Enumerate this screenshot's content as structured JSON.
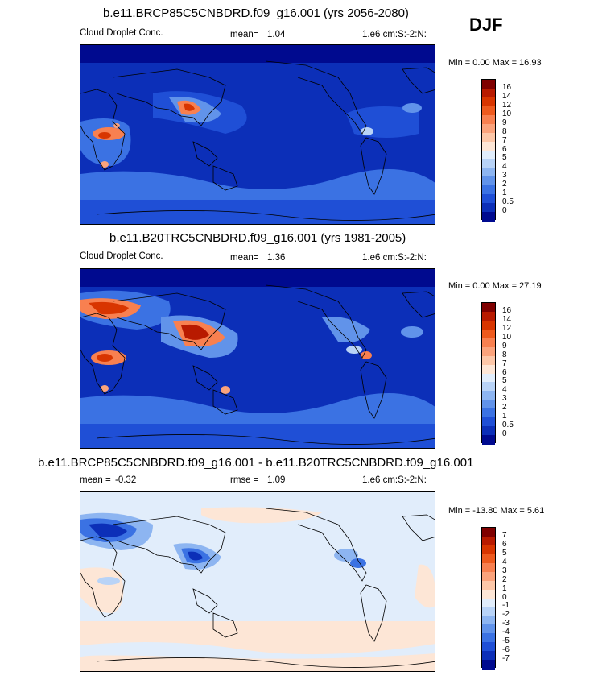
{
  "season": "DJF",
  "panels": [
    {
      "title": "b.e11.BRCP85C5CNBDRD.f09_g16.001 (yrs 2056-2080)",
      "variable": "Cloud Droplet Conc.",
      "stat_label": "mean=",
      "stat_value": "1.04",
      "units": "1.e6 cm:S:-2:N:",
      "minmax": "Min =   0.00 Max =  16.93",
      "colorbar_labels": [
        "16",
        "14",
        "12",
        "10",
        "9",
        "8",
        "7",
        "6",
        "5",
        "4",
        "3",
        "2",
        "1",
        "0.5",
        "0"
      ],
      "colors": [
        "#7f0000",
        "#b81a00",
        "#d83500",
        "#ee5a1e",
        "#f88050",
        "#fba37c",
        "#fdc7a8",
        "#fde6d6",
        "#e1edfb",
        "#b8d3f7",
        "#8db5f1",
        "#6193ea",
        "#3b72e3",
        "#1f4fd6",
        "#0c2fb8",
        "#000a8f"
      ]
    },
    {
      "title": "b.e11.B20TRC5CNBDRD.f09_g16.001 (yrs 1981-2005)",
      "variable": "Cloud Droplet Conc.",
      "stat_label": "mean=",
      "stat_value": "1.36",
      "units": "1.e6 cm:S:-2:N:",
      "minmax": "Min =   0.00 Max =  27.19",
      "colorbar_labels": [
        "16",
        "14",
        "12",
        "10",
        "9",
        "8",
        "7",
        "6",
        "5",
        "4",
        "3",
        "2",
        "1",
        "0.5",
        "0"
      ],
      "colors": [
        "#7f0000",
        "#b81a00",
        "#d83500",
        "#ee5a1e",
        "#f88050",
        "#fba37c",
        "#fdc7a8",
        "#fde6d6",
        "#e1edfb",
        "#b8d3f7",
        "#8db5f1",
        "#6193ea",
        "#3b72e3",
        "#1f4fd6",
        "#0c2fb8",
        "#000a8f"
      ]
    },
    {
      "title": "b.e11.BRCP85C5CNBDRD.f09_g16.001 - b.e11.B20TRC5CNBDRD.f09_g16.001",
      "variable": "",
      "stat_label": "mean =",
      "stat_value": "-0.32",
      "rmse_label": "rmse =",
      "rmse_value": "1.09",
      "units": "1.e6 cm:S:-2:N:",
      "minmax": "Min = -13.80 Max =   5.61",
      "colorbar_labels": [
        "7",
        "6",
        "5",
        "4",
        "3",
        "2",
        "1",
        "0",
        "-1",
        "-2",
        "-3",
        "-4",
        "-5",
        "-6",
        "-7"
      ],
      "colors": [
        "#7f0000",
        "#b81a00",
        "#d83500",
        "#ee5a1e",
        "#f88050",
        "#fba37c",
        "#fdc7a8",
        "#fde6d6",
        "#e1edfb",
        "#b8d3f7",
        "#8db5f1",
        "#6193ea",
        "#3b72e3",
        "#1f4fd6",
        "#0c2fb8",
        "#000a8f"
      ]
    }
  ],
  "chart_data": [
    {
      "type": "heatmap",
      "title": "b.e11.BRCP85C5CNBDRD.f09_g16.001 (yrs 2056-2080)",
      "variable": "Cloud Droplet Conc.",
      "mean": 1.04,
      "min": 0.0,
      "max": 16.93,
      "units": "1.e6 cm:S:-2:N:",
      "levels": [
        0,
        0.5,
        1,
        2,
        3,
        4,
        5,
        6,
        7,
        8,
        9,
        10,
        12,
        14,
        16
      ]
    },
    {
      "type": "heatmap",
      "title": "b.e11.B20TRC5CNBDRD.f09_g16.001 (yrs 1981-2005)",
      "variable": "Cloud Droplet Conc.",
      "mean": 1.36,
      "min": 0.0,
      "max": 27.19,
      "units": "1.e6 cm:S:-2:N:",
      "levels": [
        0,
        0.5,
        1,
        2,
        3,
        4,
        5,
        6,
        7,
        8,
        9,
        10,
        12,
        14,
        16
      ]
    },
    {
      "type": "heatmap",
      "title": "b.e11.BRCP85C5CNBDRD.f09_g16.001 - b.e11.B20TRC5CNBDRD.f09_g16.001",
      "mean": -0.32,
      "rmse": 1.09,
      "min": -13.8,
      "max": 5.61,
      "units": "1.e6 cm:S:-2:N:",
      "levels": [
        -7,
        -6,
        -5,
        -4,
        -3,
        -2,
        -1,
        0,
        1,
        2,
        3,
        4,
        5,
        6,
        7
      ]
    }
  ]
}
